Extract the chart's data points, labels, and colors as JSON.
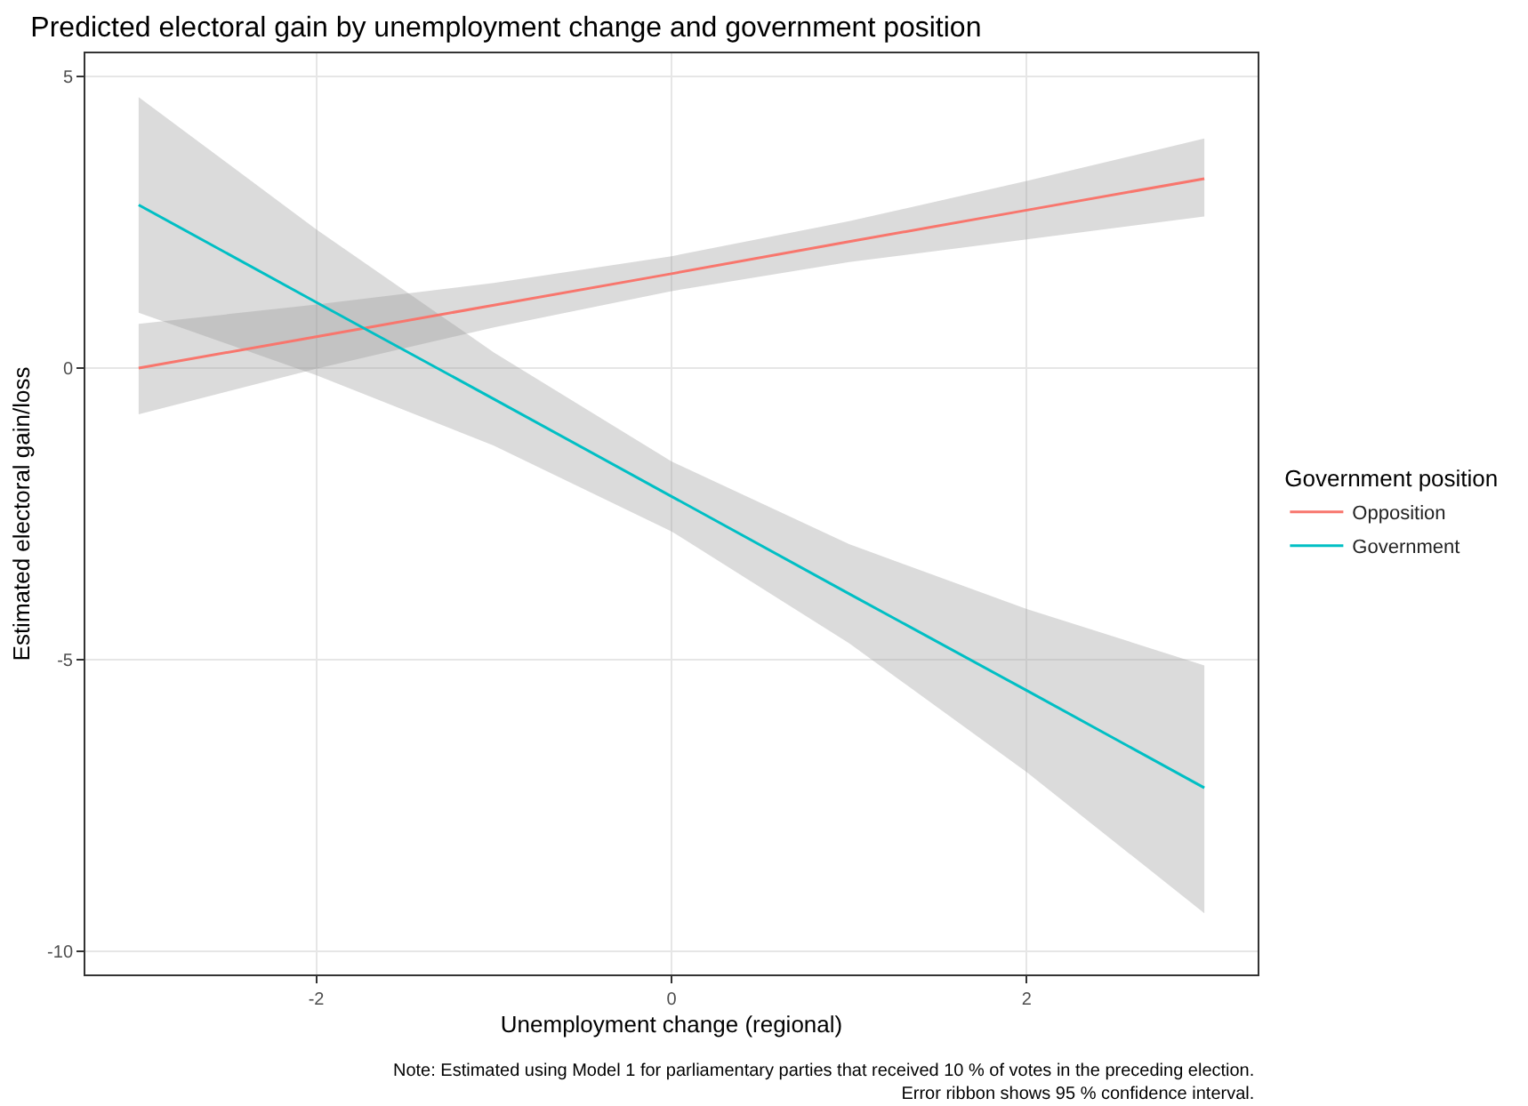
{
  "chart_data": {
    "type": "line",
    "title": "Predicted electoral gain by unemployment change and government position",
    "xlabel": "Unemployment change (regional)",
    "ylabel": "Estimated electoral gain/loss",
    "legend_title": "Government position",
    "x": [
      -3,
      -2,
      -1,
      0,
      1,
      2,
      3
    ],
    "series": [
      {
        "name": "Opposition",
        "color": "#f8766d",
        "values": [
          0,
          0.54,
          1.08,
          1.62,
          2.17,
          2.71,
          3.25
        ],
        "lower": [
          -0.79,
          -0.01,
          0.7,
          1.32,
          1.82,
          2.21,
          2.6
        ],
        "upper": [
          0.76,
          1.09,
          1.46,
          1.92,
          2.52,
          3.21,
          3.94
        ]
      },
      {
        "name": "Government",
        "color": "#00bfc4",
        "values": [
          2.8,
          1.13,
          -0.53,
          -2.2,
          -3.87,
          -5.53,
          -7.2
        ],
        "lower": [
          0.95,
          -0.12,
          -1.33,
          -2.8,
          -4.72,
          -6.93,
          -9.35
        ],
        "upper": [
          4.65,
          2.38,
          0.27,
          -1.6,
          -3.02,
          -4.13,
          -5.1
        ]
      }
    ],
    "xlim": [
      -3.3,
      3.3
    ],
    "xticks": [
      -2,
      0,
      2
    ],
    "ylim": [
      -10.4,
      5.4
    ],
    "yticks": [
      -10,
      -5,
      0,
      5
    ],
    "grid": true,
    "legend": "right",
    "marker": "none",
    "line_style": "solid",
    "annotations": [
      "Note: Estimated using Model 1 for parliamentary parties that received 10 % of votes in the preceding election.\nError ribbon shows 95 % confidence interval."
    ]
  }
}
